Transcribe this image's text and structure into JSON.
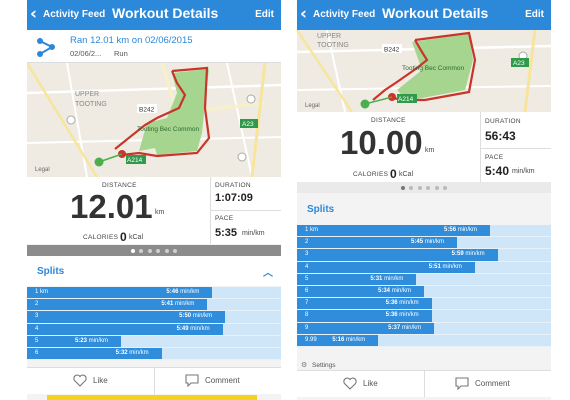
{
  "header": {
    "back_label": "Activity Feed",
    "title": "Workout Details",
    "edit_label": "Edit"
  },
  "summary": {
    "ran_text": "Ran 12.01 km on 02/06/2015",
    "date": "02/06/2...",
    "type": "Run"
  },
  "map_labels": {
    "upper": "UPPER",
    "tooting": "TOOTING",
    "b242": "B242",
    "common": "Tooting Bec Common",
    "a23": "A23",
    "a214": "A214",
    "legal": "Legal"
  },
  "screen1": {
    "distance_label": "DISTANCE",
    "distance": "12.01",
    "distance_unit": "km",
    "calories_label": "CALORIES",
    "calories": "0",
    "calories_unit": "kCal",
    "duration_label": "DURATION",
    "duration": "1:07:09",
    "pace_label": "PACE",
    "pace": "5:35",
    "pace_unit": "min/km",
    "splits_title": "Splits",
    "splits": [
      {
        "index": "1 km",
        "pace": "5:46",
        "fill": 0.73
      },
      {
        "index": "2",
        "pace": "5:41",
        "fill": 0.71
      },
      {
        "index": "3",
        "pace": "5:50",
        "fill": 0.78
      },
      {
        "index": "4",
        "pace": "5:49",
        "fill": 0.77
      },
      {
        "index": "5",
        "pace": "5:23",
        "fill": 0.37
      },
      {
        "index": "6",
        "pace": "5:32",
        "fill": 0.53
      }
    ],
    "like_label": "Like",
    "comment_label": "Comment"
  },
  "screen2": {
    "distance_label": "DISTANCE",
    "distance": "10.00",
    "distance_unit": "km",
    "calories_label": "CALORIES",
    "calories": "0",
    "calories_unit": "kCal",
    "duration_label": "DURATION",
    "duration": "56:43",
    "pace_label": "PACE",
    "pace": "5:40",
    "pace_unit": "min/km",
    "splits_title": "Splits",
    "splits": [
      {
        "index": "1 km",
        "pace": "5:56",
        "fill": 0.76
      },
      {
        "index": "2",
        "pace": "5:45",
        "fill": 0.63
      },
      {
        "index": "3",
        "pace": "5:59",
        "fill": 0.79
      },
      {
        "index": "4",
        "pace": "5:51",
        "fill": 0.7
      },
      {
        "index": "5",
        "pace": "5:31",
        "fill": 0.47
      },
      {
        "index": "6",
        "pace": "5:34",
        "fill": 0.5
      },
      {
        "index": "7",
        "pace": "5:36",
        "fill": 0.53
      },
      {
        "index": "8",
        "pace": "5:36",
        "fill": 0.53
      },
      {
        "index": "9",
        "pace": "5:37",
        "fill": 0.54
      },
      {
        "index": "9.99",
        "pace": "5:16",
        "fill": 0.32
      }
    ],
    "settings_label": "Settings",
    "like_label": "Like",
    "comment_label": "Comment"
  },
  "pace_unit_short": "min/km",
  "colors": {
    "accent": "#2c88d9",
    "bar": "#2f8ddb",
    "track": "#cfe6f8",
    "route": "#c8352a",
    "park": "#a6d58f"
  }
}
